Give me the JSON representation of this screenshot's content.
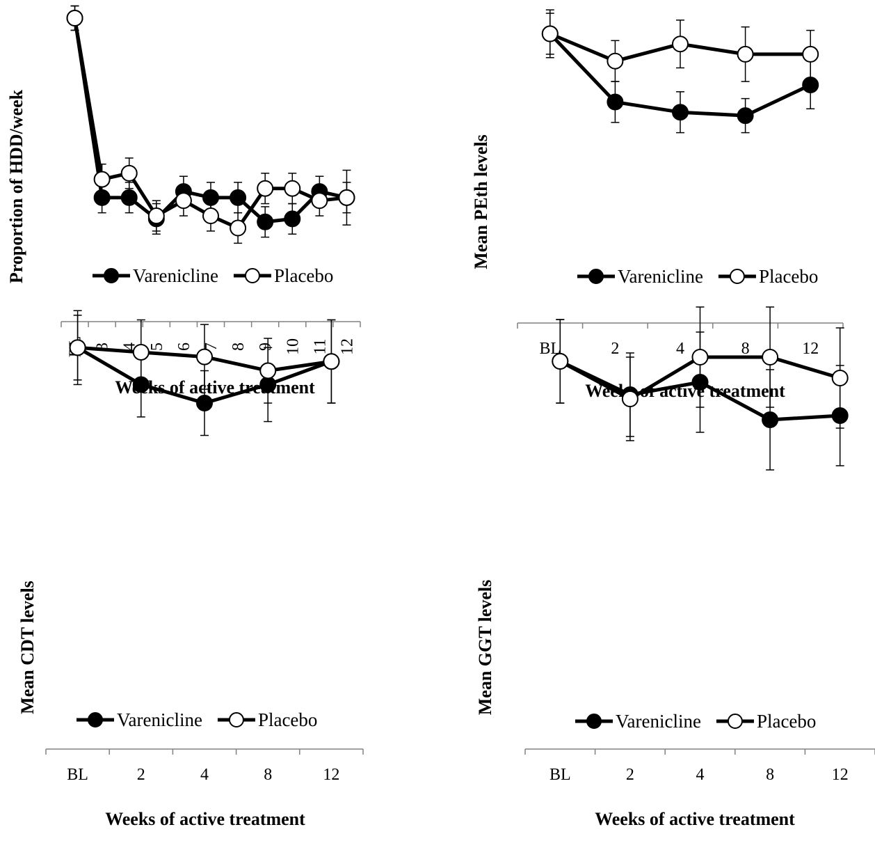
{
  "chart_data": [
    {
      "type": "line",
      "title": "",
      "xlabel": "Weeks of active treatment",
      "ylabel": "Proportion of HDD/week",
      "categories": [
        "BL",
        "3",
        "4",
        "5",
        "6",
        "7",
        "8",
        "9",
        "10",
        "11",
        "12"
      ],
      "ylim": [
        0,
        1
      ],
      "grid": false,
      "legend": "center",
      "series": [
        {
          "name": "Varenicline",
          "values": [
            1.0,
            0.41,
            0.41,
            0.34,
            0.43,
            0.41,
            0.41,
            0.33,
            0.34,
            0.43,
            0.41
          ],
          "errors": [
            0.04,
            0.05,
            0.05,
            0.05,
            0.05,
            0.05,
            0.05,
            0.05,
            0.05,
            0.05,
            0.05
          ]
        },
        {
          "name": "Placebo",
          "values": [
            1.0,
            0.47,
            0.49,
            0.35,
            0.4,
            0.35,
            0.31,
            0.44,
            0.44,
            0.4,
            0.41
          ],
          "errors": [
            0.04,
            0.05,
            0.05,
            0.05,
            0.05,
            0.05,
            0.05,
            0.05,
            0.05,
            0.05,
            0.09
          ]
        }
      ]
    },
    {
      "type": "line",
      "title": "",
      "xlabel": "Weeks of active treatment",
      "ylabel": "Mean PEth levels",
      "categories": [
        "BL",
        "2",
        "4",
        "8",
        "12"
      ],
      "ylim": [
        0,
        1
      ],
      "grid": false,
      "legend": "center",
      "series": [
        {
          "name": "Varenicline",
          "values": [
            0.85,
            0.65,
            0.62,
            0.61,
            0.7
          ],
          "errors": [
            0.07,
            0.06,
            0.06,
            0.05,
            0.07
          ]
        },
        {
          "name": "Placebo",
          "values": [
            0.85,
            0.77,
            0.82,
            0.79,
            0.79
          ],
          "errors": [
            0.06,
            0.06,
            0.07,
            0.08,
            0.07
          ]
        }
      ]
    },
    {
      "type": "line",
      "title": "",
      "xlabel": "Weeks of active treatment",
      "ylabel": "Mean CDT levels",
      "categories": [
        "BL",
        "2",
        "4",
        "8",
        "12"
      ],
      "ylim": [
        0,
        1
      ],
      "grid": false,
      "legend": "center",
      "series": [
        {
          "name": "Varenicline",
          "values": [
            0.87,
            0.79,
            0.75,
            0.79,
            0.84
          ],
          "errors": [
            0.08,
            0.07,
            0.07,
            0.08,
            0.09
          ]
        },
        {
          "name": "Placebo",
          "values": [
            0.87,
            0.86,
            0.85,
            0.82,
            0.84
          ],
          "errors": [
            0.07,
            0.07,
            0.07,
            0.07,
            0.09
          ]
        }
      ]
    },
    {
      "type": "line",
      "title": "",
      "xlabel": "Weeks of active treatment",
      "ylabel": "Mean GGT levels",
      "categories": [
        "BL",
        "2",
        "4",
        "8",
        "12"
      ],
      "ylim": [
        0,
        1
      ],
      "grid": false,
      "legend": "center",
      "series": [
        {
          "name": "Varenicline",
          "values": [
            0.93,
            0.85,
            0.88,
            0.79,
            0.8
          ],
          "errors": [
            0.1,
            0.1,
            0.12,
            0.12,
            0.12
          ]
        },
        {
          "name": "Placebo",
          "values": [
            0.93,
            0.84,
            0.94,
            0.94,
            0.89
          ],
          "errors": [
            0.1,
            0.1,
            0.12,
            0.12,
            0.12
          ]
        }
      ]
    }
  ]
}
